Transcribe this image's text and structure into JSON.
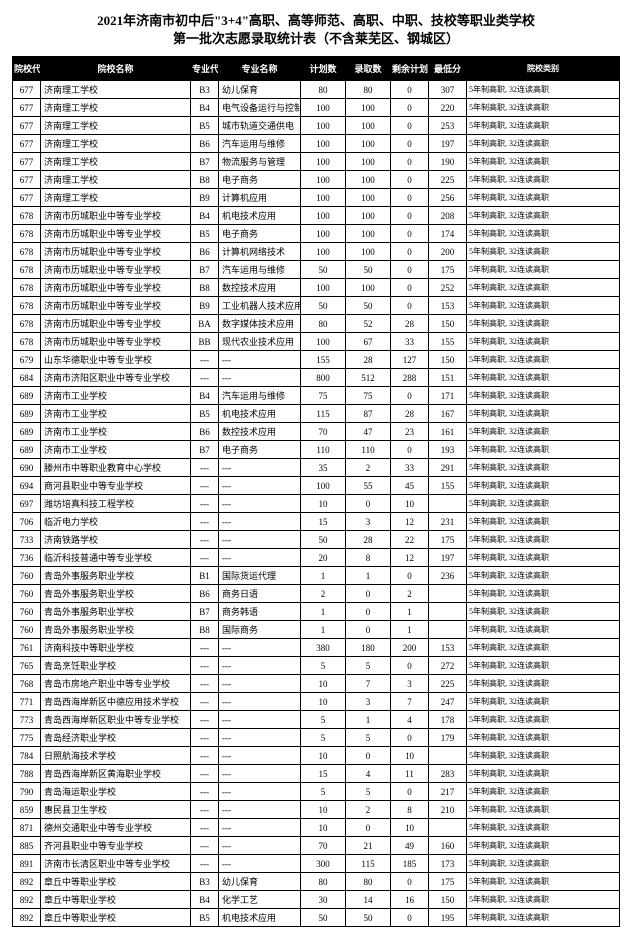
{
  "title_line1": "2021年济南市初中后\"3+4\"高职、高等师范、高职、中职、技校等职业类学校",
  "title_line2": "第一批次志愿录取统计表（不含莱芜区、钢城区）",
  "title_fontsize": 13,
  "headers": [
    "院校代码",
    "院校名称",
    "专业代码",
    "专业名称",
    "计划数",
    "录取数",
    "剩余计划",
    "最低分",
    "院校类别"
  ],
  "default_type": "5年制高职, 32连读高职",
  "rows": [
    [
      "677",
      "济南理工学校",
      "B3",
      "幼儿保育",
      "80",
      "80",
      "0",
      "307"
    ],
    [
      "677",
      "济南理工学校",
      "B4",
      "电气设备运行与控制",
      "100",
      "100",
      "0",
      "220"
    ],
    [
      "677",
      "济南理工学校",
      "B5",
      "城市轨道交通供电",
      "100",
      "100",
      "0",
      "253"
    ],
    [
      "677",
      "济南理工学校",
      "B6",
      "汽车运用与维修",
      "100",
      "100",
      "0",
      "197"
    ],
    [
      "677",
      "济南理工学校",
      "B7",
      "物流服务与管理",
      "100",
      "100",
      "0",
      "190"
    ],
    [
      "677",
      "济南理工学校",
      "B8",
      "电子商务",
      "100",
      "100",
      "0",
      "225"
    ],
    [
      "677",
      "济南理工学校",
      "B9",
      "计算机应用",
      "100",
      "100",
      "0",
      "256"
    ],
    [
      "678",
      "济南市历城职业中等专业学校",
      "B4",
      "机电技术应用",
      "100",
      "100",
      "0",
      "208"
    ],
    [
      "678",
      "济南市历城职业中等专业学校",
      "B5",
      "电子商务",
      "100",
      "100",
      "0",
      "174"
    ],
    [
      "678",
      "济南市历城职业中等专业学校",
      "B6",
      "计算机网络技术",
      "100",
      "100",
      "0",
      "200"
    ],
    [
      "678",
      "济南市历城职业中等专业学校",
      "B7",
      "汽车运用与维修",
      "50",
      "50",
      "0",
      "175"
    ],
    [
      "678",
      "济南市历城职业中等专业学校",
      "B8",
      "数控技术应用",
      "100",
      "100",
      "0",
      "252"
    ],
    [
      "678",
      "济南市历城职业中等专业学校",
      "B9",
      "工业机器人技术应用",
      "50",
      "50",
      "0",
      "153"
    ],
    [
      "678",
      "济南市历城职业中等专业学校",
      "BA",
      "数字媒体技术应用",
      "80",
      "52",
      "28",
      "150"
    ],
    [
      "678",
      "济南市历城职业中等专业学校",
      "BB",
      "现代农业技术应用",
      "100",
      "67",
      "33",
      "155"
    ],
    [
      "679",
      "山东华德职业中等专业学校",
      "---",
      "---",
      "155",
      "28",
      "127",
      "150"
    ],
    [
      "684",
      "济南市济阳区职业中等专业学校",
      "---",
      "---",
      "800",
      "512",
      "288",
      "151"
    ],
    [
      "689",
      "济南市工业学校",
      "B4",
      "汽车运用与维修",
      "75",
      "75",
      "0",
      "171"
    ],
    [
      "689",
      "济南市工业学校",
      "B5",
      "机电技术应用",
      "115",
      "87",
      "28",
      "167"
    ],
    [
      "689",
      "济南市工业学校",
      "B6",
      "数控技术应用",
      "70",
      "47",
      "23",
      "161"
    ],
    [
      "689",
      "济南市工业学校",
      "B7",
      "电子商务",
      "110",
      "110",
      "0",
      "193"
    ],
    [
      "690",
      "滕州市中等职业教育中心学校",
      "---",
      "---",
      "35",
      "2",
      "33",
      "291"
    ],
    [
      "694",
      "商河县职业中等专业学校",
      "---",
      "---",
      "100",
      "55",
      "45",
      "155"
    ],
    [
      "697",
      "潍坊培真科技工程学校",
      "---",
      "---",
      "10",
      "0",
      "10",
      ""
    ],
    [
      "706",
      "临沂电力学校",
      "---",
      "---",
      "15",
      "3",
      "12",
      "231"
    ],
    [
      "733",
      "济南铁路学校",
      "---",
      "---",
      "50",
      "28",
      "22",
      "175"
    ],
    [
      "736",
      "临沂科技普通中等专业学校",
      "---",
      "---",
      "20",
      "8",
      "12",
      "197"
    ],
    [
      "760",
      "青岛外事服务职业学校",
      "B1",
      "国际货运代理",
      "1",
      "1",
      "0",
      "236"
    ],
    [
      "760",
      "青岛外事服务职业学校",
      "B6",
      "商务日语",
      "2",
      "0",
      "2",
      ""
    ],
    [
      "760",
      "青岛外事服务职业学校",
      "B7",
      "商务韩语",
      "1",
      "0",
      "1",
      ""
    ],
    [
      "760",
      "青岛外事服务职业学校",
      "B8",
      "国际商务",
      "1",
      "0",
      "1",
      ""
    ],
    [
      "761",
      "济南科技中等职业学校",
      "---",
      "---",
      "380",
      "180",
      "200",
      "153"
    ],
    [
      "765",
      "青岛烹饪职业学校",
      "---",
      "---",
      "5",
      "5",
      "0",
      "272"
    ],
    [
      "768",
      "青岛市房地产职业中等专业学校",
      "---",
      "---",
      "10",
      "7",
      "3",
      "225"
    ],
    [
      "771",
      "青岛西海岸新区中德应用技术学校",
      "---",
      "---",
      "10",
      "3",
      "7",
      "247"
    ],
    [
      "773",
      "青岛西海岸新区职业中等专业学校",
      "---",
      "---",
      "5",
      "1",
      "4",
      "178"
    ],
    [
      "775",
      "青岛经济职业学校",
      "---",
      "---",
      "5",
      "5",
      "0",
      "179"
    ],
    [
      "784",
      "日照航海技术学校",
      "---",
      "---",
      "10",
      "0",
      "10",
      ""
    ],
    [
      "788",
      "青岛西海岸新区黄海职业学校",
      "---",
      "---",
      "15",
      "4",
      "11",
      "283"
    ],
    [
      "790",
      "青岛海运职业学校",
      "---",
      "---",
      "5",
      "5",
      "0",
      "217"
    ],
    [
      "859",
      "惠民县卫生学校",
      "---",
      "---",
      "10",
      "2",
      "8",
      "210"
    ],
    [
      "871",
      "德州交通职业中等专业学校",
      "---",
      "---",
      "10",
      "0",
      "10",
      ""
    ],
    [
      "885",
      "齐河县职业中等专业学校",
      "---",
      "---",
      "70",
      "21",
      "49",
      "160"
    ],
    [
      "891",
      "济南市长清区职业中等专业学校",
      "---",
      "---",
      "300",
      "115",
      "185",
      "173"
    ],
    [
      "892",
      "章丘中等职业学校",
      "B3",
      "幼儿保育",
      "80",
      "80",
      "0",
      "175"
    ],
    [
      "892",
      "章丘中等职业学校",
      "B4",
      "化学工艺",
      "30",
      "14",
      "16",
      "150"
    ],
    [
      "892",
      "章丘中等职业学校",
      "B5",
      "机电技术应用",
      "50",
      "50",
      "0",
      "195"
    ]
  ]
}
